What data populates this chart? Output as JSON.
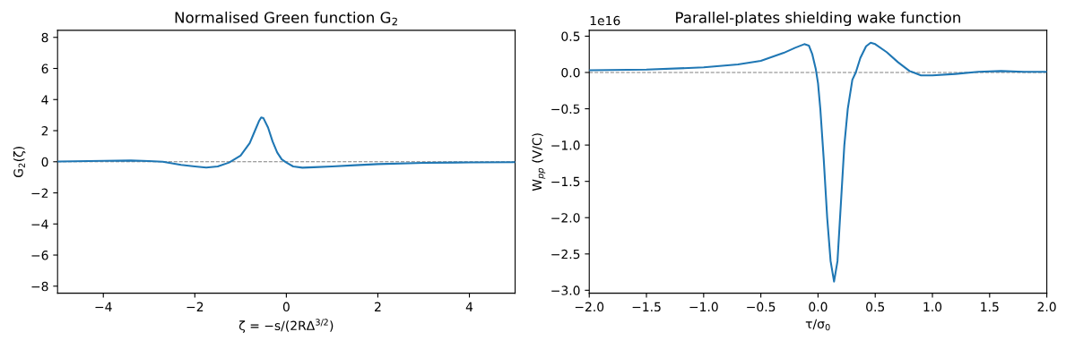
{
  "chart_data": [
    {
      "type": "line",
      "title": "Normalised Green function G$_{2}$",
      "xlabel": "ζ = −s/(2RΔ$^{3/2}$)",
      "ylabel": "G$_{2}$(ζ)",
      "x": [
        -5,
        -4,
        -3.4,
        -3,
        -2.7,
        -2.3,
        -2,
        -1.75,
        -1.5,
        -1.25,
        -1.0,
        -0.8,
        -0.7,
        -0.6,
        -0.55,
        -0.5,
        -0.4,
        -0.3,
        -0.2,
        -0.1,
        0,
        0.15,
        0.35,
        0.6,
        1,
        1.5,
        2,
        3,
        4,
        5
      ],
      "series": [
        {
          "color": "#1f77b4",
          "values": [
            0.02,
            0.06,
            0.08,
            0.04,
            0,
            -0.2,
            -0.3,
            -0.37,
            -0.3,
            -0.05,
            0.4,
            1.2,
            1.9,
            2.6,
            2.85,
            2.8,
            2.2,
            1.3,
            0.6,
            0.15,
            -0.05,
            -0.3,
            -0.38,
            -0.35,
            -0.3,
            -0.22,
            -0.15,
            -0.07,
            -0.04,
            -0.03
          ]
        }
      ],
      "xlim": [
        -5,
        5
      ],
      "xticks": [
        {
          "value": -4,
          "label": "−4"
        },
        {
          "value": -2,
          "label": "−2"
        },
        0,
        2,
        4
      ],
      "ylim": [
        -8.45,
        8.45
      ],
      "yticks": [
        {
          "value": -8,
          "label": "−8"
        },
        {
          "value": -6,
          "label": "−6"
        },
        {
          "value": -4,
          "label": "−4"
        },
        {
          "value": -2,
          "label": "−2"
        },
        0,
        2,
        4,
        6,
        8
      ],
      "ref_lines": [
        {
          "axis": "y",
          "value": 0,
          "color": "#808080",
          "line_style": "dashed"
        }
      ],
      "grid": false,
      "legend": false,
      "marker": "none",
      "line_style": "solid"
    },
    {
      "type": "line",
      "title": "Parallel-plates shielding wake function",
      "xlabel": "τ/σ$_{0}$",
      "ylabel": "W$_{pp}$ (V/C)",
      "annotations": [
        "1e16"
      ],
      "x": [
        -2,
        -1.5,
        -1,
        -0.7,
        -0.5,
        -0.3,
        -0.2,
        -0.12,
        -0.08,
        -0.05,
        -0.02,
        0,
        0.02,
        0.05,
        0.08,
        0.11,
        0.14,
        0.17,
        0.2,
        0.23,
        0.26,
        0.3,
        0.33,
        0.37,
        0.42,
        0.46,
        0.5,
        0.6,
        0.7,
        0.8,
        0.9,
        1,
        1.2,
        1.4,
        1.6,
        1.8,
        2
      ],
      "series": [
        {
          "color": "#1f77b4",
          "values": [
            0.03,
            0.04,
            0.07,
            0.11,
            0.16,
            0.27,
            0.34,
            0.39,
            0.37,
            0.25,
            0.05,
            -0.15,
            -0.5,
            -1.2,
            -2.0,
            -2.6,
            -2.88,
            -2.6,
            -1.8,
            -1.0,
            -0.5,
            -0.1,
            0.0,
            0.2,
            0.36,
            0.41,
            0.39,
            0.28,
            0.14,
            0.02,
            -0.04,
            -0.04,
            -0.02,
            0.01,
            0.02,
            0.01,
            0.01
          ]
        }
      ],
      "xlim": [
        -2,
        2
      ],
      "xticks": [
        {
          "value": -2,
          "label": "−2.0"
        },
        {
          "value": -1.5,
          "label": "−1.5"
        },
        {
          "value": -1,
          "label": "−1.0"
        },
        {
          "value": -0.5,
          "label": "−0.5"
        },
        {
          "value": 0,
          "label": "0.0"
        },
        0.5,
        {
          "value": 1,
          "label": "1.0"
        },
        1.5,
        {
          "value": 2,
          "label": "2.0"
        }
      ],
      "ylim": [
        -3.04,
        0.58
      ],
      "yticks": [
        {
          "value": -3,
          "label": "−3.0"
        },
        {
          "value": -2.5,
          "label": "−2.5"
        },
        {
          "value": -2,
          "label": "−2.0"
        },
        {
          "value": -1.5,
          "label": "−1.5"
        },
        {
          "value": -1,
          "label": "−1.0"
        },
        {
          "value": -0.5,
          "label": "−0.5"
        },
        {
          "value": 0,
          "label": "0.0"
        },
        0.5
      ],
      "ref_lines": [
        {
          "axis": "y",
          "value": 0,
          "color": "#808080",
          "line_style": "dashed"
        }
      ],
      "grid": false,
      "legend": false,
      "marker": "none",
      "line_style": "solid"
    }
  ]
}
